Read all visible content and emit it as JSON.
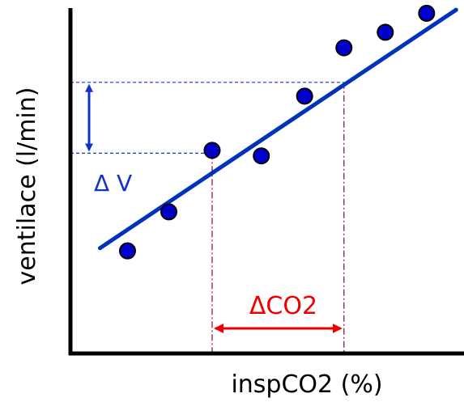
{
  "chart_data": {
    "type": "scatter",
    "title": "",
    "xlabel": "inspCO2 (%)",
    "ylabel": "ventilace (l/min)",
    "xlim": [
      0,
      10
    ],
    "ylim": [
      0,
      10
    ],
    "grid": false,
    "points": [
      {
        "x": 1.45,
        "y": 2.97
      },
      {
        "x": 2.5,
        "y": 4.1
      },
      {
        "x": 3.6,
        "y": 5.88
      },
      {
        "x": 4.85,
        "y": 5.72
      },
      {
        "x": 5.95,
        "y": 7.45
      },
      {
        "x": 6.95,
        "y": 8.85
      },
      {
        "x": 8.0,
        "y": 9.3
      },
      {
        "x": 9.05,
        "y": 9.85
      }
    ],
    "fit_line": {
      "x": [
        0.75,
        9.8
      ],
      "y": [
        3.05,
        9.95
      ]
    },
    "colors": {
      "points": "#0000cc",
      "fit_line": "#0033bb",
      "delta_v": "#1133cc",
      "delta_co2": "#ee0000",
      "axes": "#000000",
      "x_guides": "#990033"
    },
    "annotations": {
      "delta_v": {
        "label": "Δ V",
        "y_low": 5.8,
        "y_high": 7.85
      },
      "delta_co2": {
        "label": "ΔCO2",
        "x_low": 3.6,
        "x_high": 6.95
      }
    }
  }
}
